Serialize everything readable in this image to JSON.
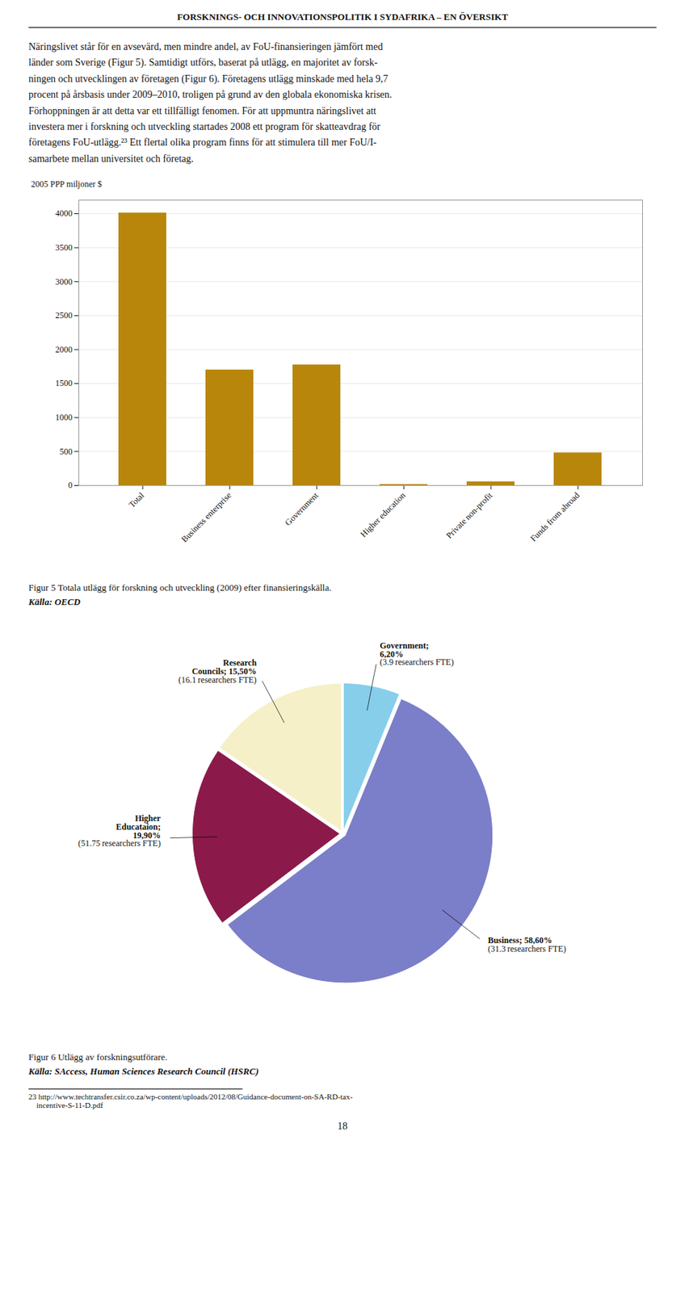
{
  "title": "FORSKNINGS- OCH INNOVATIONSPOLITIK I SYDAFRIKA – EN ÖVERSIKT",
  "annotations": [
    "Näringslivet står för en avsevärd, men mindre andel, av FoU-finansieringen jämfört med\nländer som Sverige (Figur 5). Samtidigt utförs, baserat på utlägg, en majoritet av forsk-\nningen och utvecklingen av företagen (Figur 6). Företagens utlägg minskade med hela 9,7\nprocent på årsbasis under 2009–2010, troligen på grund av den globala ekonomiska krisen.\nFörhoppningen är att detta var ett tillfälligt fenomen. För att uppmuntra näringslivet att\ninvestera mer i forskning och utveckling startades 2008 ett program för skatteavdrag för\nföretagens FoU-utlägg.²³ Ett flertal olika program finns för att stimulera till mer FoU/I-\nsamarbete mellan universitet och företag.",
    "23 http://www.techtransfer.csir.co.za/wp-content/uploads/2012/08/Guidance-document-on-SA-RD-tax-\n    incentive-S-11-D.pdf",
    "18"
  ],
  "chart_data": [
    {
      "type": "bar",
      "categories": [
        "Total",
        "Business enterprise",
        "Government",
        "Higher education",
        "Private non-profit",
        "Funds from abroad"
      ],
      "values": [
        4010,
        1700,
        1775,
        15,
        55,
        480
      ],
      "color": "#B8860B",
      "ylabel": "2005 PPP miljoner $",
      "ylim": [
        0,
        4200
      ],
      "yticks": [
        0,
        500,
        1000,
        1500,
        2000,
        2500,
        3000,
        3500,
        4000
      ],
      "grid": true,
      "annotations": [
        "Figur 5 Totala utlägg för forskning och utveckling (2009) efter finansieringskälla.",
        "Källa: OECD"
      ]
    },
    {
      "type": "pie",
      "values": [
        6.2,
        58.6,
        19.9,
        15.5
      ],
      "value_labels": [
        "Government;\n6,20%",
        "Business; 58,60%",
        "Higher\nEducataion;\n19,90%",
        "Research\nCouncils; 15,50%"
      ],
      "data_labels": true,
      "colors": [
        "#87CEEB",
        "#7B7EC8",
        "#8B1A4A",
        "#F5F0C8"
      ],
      "annotations": [
        "(3.9 researchers FTE)",
        "(31.3 researchers FTE)",
        "(51.75 researchers FTE)",
        "(16.1 researchers FTE)",
        "Figur 6 Utlägg av forskningsutförare.",
        "Källa: SAccess, Human Sciences Research Council (HSRC)"
      ]
    }
  ]
}
